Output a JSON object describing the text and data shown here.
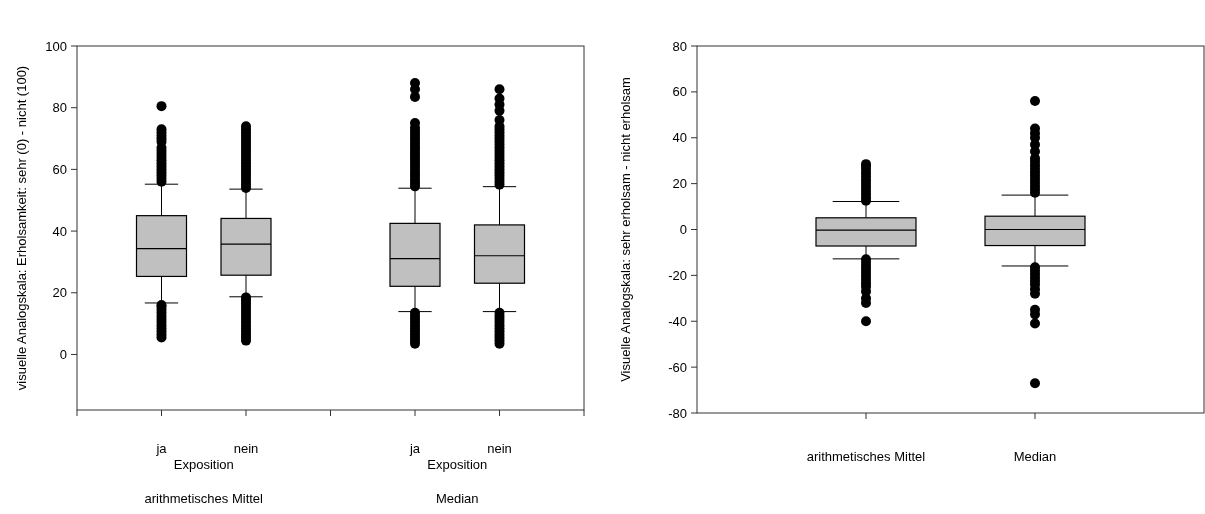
{
  "chart_data": [
    {
      "type": "box",
      "ylabel": "visuelle Analogskala: Erholsamkeit: sehr (0) - nicht (100)",
      "categories": [
        "ja",
        "nein",
        null,
        "ja",
        "nein"
      ],
      "ylim": [
        -18,
        100
      ],
      "yticks": [
        0,
        20,
        40,
        60,
        80,
        100
      ],
      "color": "#c0c0c0",
      "annotations": [
        "Exposition",
        "Exposition",
        "arithmetisches Mittel",
        "Median"
      ],
      "boxes": [
        {
          "low": 16.7,
          "q1": 25.3,
          "median": 34.3,
          "q3": 45,
          "high": 55.2,
          "outliers": [
            56,
            57,
            58,
            59,
            60,
            61,
            62,
            63,
            64,
            65,
            66,
            67,
            69,
            70,
            71,
            72,
            73,
            80.5,
            5.5,
            6.5,
            7.5,
            8.5,
            9.5,
            10.5,
            11.5,
            12.5,
            13.5,
            14.5,
            15.5,
            16
          ]
        },
        {
          "low": 18.7,
          "q1": 25.7,
          "median": 35.8,
          "q3": 44.1,
          "high": 53.6,
          "outliers": [
            54,
            55,
            56,
            57,
            58,
            59,
            60,
            61,
            62,
            63,
            64,
            65,
            66,
            67,
            68,
            69,
            70,
            71,
            72,
            73,
            74,
            4.5,
            5.5,
            6.5,
            7.5,
            8.5,
            9.5,
            10.5,
            11.5,
            12.5,
            13.5,
            14.5,
            15.5,
            16.5,
            17.5,
            18.5
          ]
        },
        null,
        {
          "low": 13.9,
          "q1": 22.1,
          "median": 31.1,
          "q3": 42.5,
          "high": 53.9,
          "outliers": [
            54.5,
            55.5,
            56.5,
            57.5,
            58.5,
            59.5,
            60.5,
            61.5,
            62.5,
            63.5,
            64.5,
            65.5,
            66.5,
            67.5,
            68.5,
            69.5,
            70.5,
            71.5,
            72.5,
            73.5,
            75,
            83.5,
            86,
            88,
            3.5,
            4.5,
            5.5,
            6.5,
            7.5,
            8.5,
            9.5,
            10.5,
            11.5,
            12.5,
            13.5
          ]
        },
        {
          "low": 13.9,
          "q1": 23.1,
          "median": 32,
          "q3": 42,
          "high": 54.4,
          "outliers": [
            55,
            56,
            57,
            58,
            59,
            60,
            61,
            62,
            63,
            64,
            65,
            66,
            67,
            68,
            69,
            70,
            71,
            72,
            73,
            74,
            76,
            79,
            81,
            83,
            86,
            3.5,
            4.5,
            5.5,
            6.5,
            7.5,
            8.5,
            9.5,
            10.5,
            11.5,
            12.5,
            13.5
          ]
        }
      ]
    },
    {
      "type": "box",
      "ylabel": "Visuelle Analogskala: sehr erholsam - nicht erholsam",
      "categories": [
        "arithmetisches Mittel",
        "Median"
      ],
      "ylim": [
        -80,
        80
      ],
      "yticks": [
        -80,
        -60,
        -40,
        -20,
        0,
        20,
        40,
        60,
        80
      ],
      "color": "#c0c0c0",
      "boxes": [
        {
          "low": -12.8,
          "q1": -7.2,
          "median": -0.3,
          "q3": 5.1,
          "high": 12.2,
          "outliers": [
            12.5,
            14,
            15.5,
            17,
            18.5,
            20,
            21.5,
            23,
            24.5,
            26,
            27.5,
            28.5,
            -13,
            -14.5,
            -16,
            -17.5,
            -19,
            -20.5,
            -22,
            -23.5,
            -25,
            -27,
            -30,
            -32,
            -40
          ]
        },
        {
          "low": -15.9,
          "q1": -7,
          "median": 0,
          "q3": 5.8,
          "high": 15,
          "outliers": [
            16,
            17.5,
            19,
            20.5,
            22,
            23.5,
            25,
            26.5,
            28,
            29.5,
            31,
            34,
            37,
            40,
            42,
            44,
            56,
            -16.5,
            -18,
            -19.5,
            -21,
            -22.5,
            -24,
            -26,
            -28,
            -35,
            -37,
            -41,
            -67
          ]
        }
      ]
    }
  ]
}
